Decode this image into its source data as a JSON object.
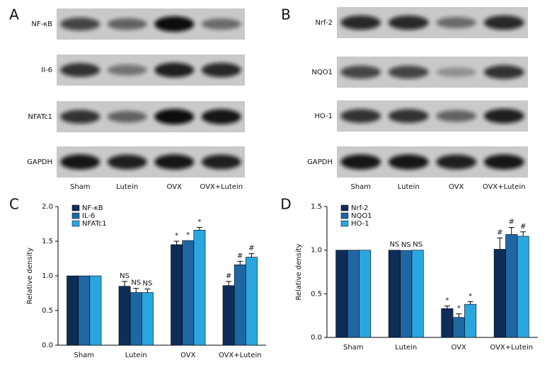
{
  "blots": [
    {
      "panel_label": "A",
      "rows": [
        "NF-κB",
        "Il-6",
        "NFATc1",
        "GAPDH"
      ],
      "lanes": [
        "Sham",
        "Lutein",
        "OVX",
        "OVX+Lutein"
      ]
    },
    {
      "panel_label": "B",
      "rows": [
        "Nrf-2",
        "NQO1",
        "HO-1",
        "GAPDH"
      ],
      "lanes": [
        "Sham",
        "Lutein",
        "OVX",
        "OVX+Lutein"
      ]
    }
  ],
  "chart_data": [
    {
      "type": "bar",
      "panel_label": "C",
      "y_label": "Relative density",
      "categories": [
        "Sham",
        "Lutein",
        "OVX",
        "OVX+Lutein"
      ],
      "ylim": [
        0,
        2.0
      ],
      "yticks": [
        {
          "value": 0,
          "label": "0.0"
        },
        0.5,
        {
          "value": 1,
          "label": "1.0"
        },
        1.5,
        {
          "value": 2,
          "label": "2.0"
        }
      ],
      "legend": "upper left",
      "series": [
        {
          "name": "NF-κB",
          "color": "#0d2d57",
          "values": [
            1.0,
            0.85,
            1.45,
            0.86
          ],
          "errors": [
            0,
            0.07,
            0.05,
            0.06
          ],
          "annotations": [
            null,
            "NS",
            "*",
            "#"
          ]
        },
        {
          "name": "IL-6",
          "color": "#1e67a3",
          "values": [
            1.0,
            0.76,
            1.51,
            1.16
          ],
          "errors": [
            0,
            0.06,
            0,
            0.05
          ],
          "annotations": [
            null,
            "NS",
            "*",
            "#"
          ]
        },
        {
          "name": "NFATc1",
          "color": "#2aa6df",
          "values": [
            1.0,
            0.76,
            1.66,
            1.27
          ],
          "errors": [
            0,
            0.05,
            0.04,
            0.05
          ],
          "annotations": [
            null,
            "NS",
            "*",
            "#"
          ]
        }
      ]
    },
    {
      "type": "bar",
      "panel_label": "D",
      "y_label": "Relative density",
      "categories": [
        "Sham",
        "Lutein",
        "OVX",
        "OVX+Lutein"
      ],
      "ylim": [
        0,
        1.5
      ],
      "yticks": [
        {
          "value": 0,
          "label": "0.0"
        },
        0.5,
        {
          "value": 1,
          "label": "1.0"
        },
        1.5
      ],
      "legend": "upper left",
      "series": [
        {
          "name": "Nrf-2",
          "color": "#0d2d57",
          "values": [
            1.0,
            1.0,
            0.33,
            1.01
          ],
          "errors": [
            0,
            0,
            0.03,
            0.13
          ],
          "annotations": [
            null,
            "NS",
            "*",
            "#"
          ]
        },
        {
          "name": "NQO1",
          "color": "#1e67a3",
          "values": [
            1.0,
            0.997,
            0.23,
            1.18
          ],
          "errors": [
            0,
            0,
            0.04,
            0.08
          ],
          "annotations": [
            null,
            "NS",
            "*",
            "#"
          ]
        },
        {
          "name": "HO-1",
          "color": "#2aa6df",
          "values": [
            1.0,
            1.0,
            0.38,
            1.16
          ],
          "errors": [
            0,
            0,
            0.03,
            0.05
          ],
          "annotations": [
            null,
            "NS",
            "*",
            "#"
          ]
        }
      ]
    }
  ]
}
